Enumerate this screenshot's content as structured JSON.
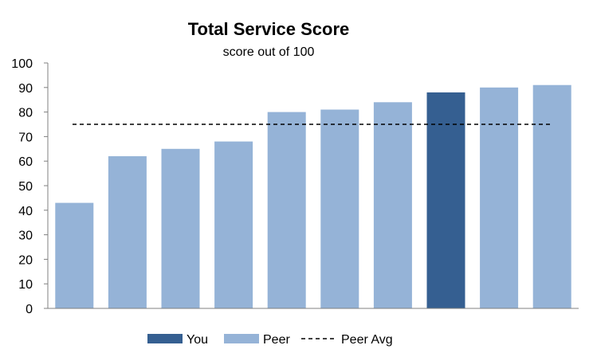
{
  "chart_data": {
    "type": "bar",
    "title": "Total Service Score",
    "subtitle": "score out of 100",
    "xlabel": "",
    "ylabel": "",
    "ylim": [
      0,
      100
    ],
    "yticks": [
      "0",
      "10",
      "20",
      "30",
      "40",
      "50",
      "60",
      "70",
      "80",
      "90",
      "100"
    ],
    "values": [
      43,
      62,
      65,
      68,
      80,
      81,
      84,
      88,
      90,
      91
    ],
    "bar_roles": [
      "peer",
      "peer",
      "peer",
      "peer",
      "peer",
      "peer",
      "peer",
      "you",
      "peer",
      "peer"
    ],
    "peer_avg": 75,
    "grid": false,
    "legend": {
      "position": "bottom",
      "items": [
        {
          "label": "You",
          "type": "bar",
          "color": "#355F91"
        },
        {
          "label": "Peer",
          "type": "bar",
          "color": "#95B3D7"
        },
        {
          "label": "Peer Avg",
          "type": "dashed-line",
          "color": "#000000"
        }
      ]
    },
    "colors": {
      "you": "#355F91",
      "peer": "#95B3D7"
    }
  }
}
